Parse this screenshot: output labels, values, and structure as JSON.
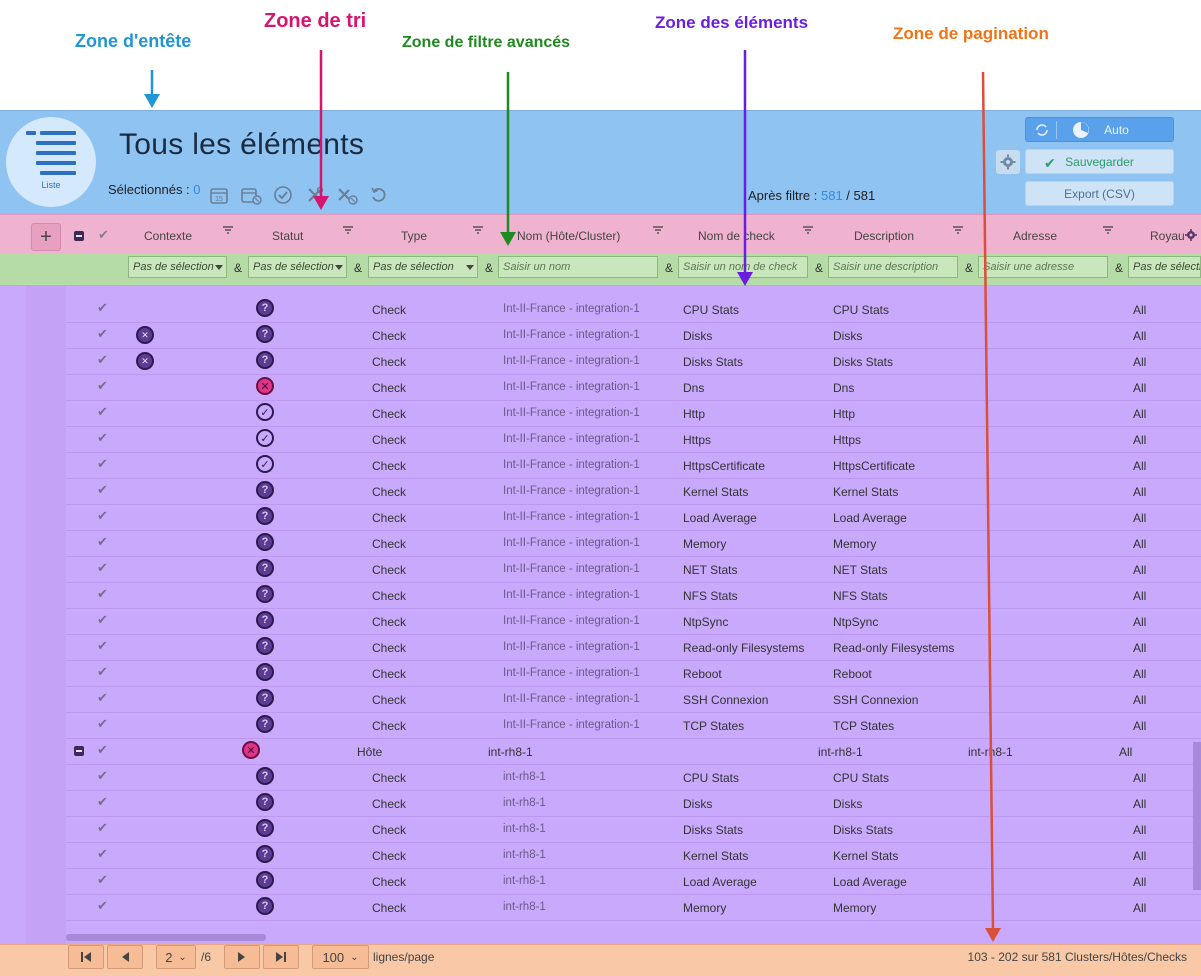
{
  "annotations": {
    "header": {
      "label": "Zone d'entête",
      "color": "#2196d6"
    },
    "sort": {
      "label": "Zone de tri",
      "color": "#d6166e"
    },
    "filter": {
      "label": "Zone de filtre avancés",
      "color": "#1f8a1f"
    },
    "items": {
      "label": "Zone des éléments",
      "color": "#6a1ee0"
    },
    "pagination": {
      "label": "Zone de pagination",
      "color": "#f07417"
    }
  },
  "header": {
    "logo_label": "Liste",
    "title": "Tous les éléments",
    "selected_label": "Sélectionnés :",
    "selected_count": "0",
    "after_filter_label": "Après filtre :",
    "after_filter_count": "581",
    "after_filter_total": "581",
    "auto_label": "Auto",
    "save_label": "Sauvegarder",
    "export_label": "Export (CSV)"
  },
  "columns": {
    "context": "Contexte",
    "status": "Statut",
    "type": "Type",
    "name": "Nom (Hôte/Cluster)",
    "check": "Nom de check",
    "description": "Description",
    "address": "Adresse",
    "realm": "Royau"
  },
  "filters": {
    "context": "Pas de sélection",
    "status": "Pas de sélection",
    "type": "Pas de sélection",
    "name_placeholder": "Saisir un nom",
    "check_placeholder": "Saisir un nom de check",
    "description_placeholder": "Saisir une description",
    "address_placeholder": "Saisir une adresse",
    "realm": "Pas de sélection",
    "amp": "&"
  },
  "rows": [
    {
      "ctx": false,
      "status": "unknown",
      "type": "Check",
      "name": "Int-II-France - integration-1",
      "check": "CPU Stats",
      "desc": "CPU Stats",
      "addr": "",
      "realm": "All"
    },
    {
      "ctx": true,
      "status": "unknown",
      "type": "Check",
      "name": "Int-II-France - integration-1",
      "check": "Disks",
      "desc": "Disks",
      "addr": "",
      "realm": "All"
    },
    {
      "ctx": true,
      "status": "unknown",
      "type": "Check",
      "name": "Int-II-France - integration-1",
      "check": "Disks Stats",
      "desc": "Disks Stats",
      "addr": "",
      "realm": "All"
    },
    {
      "ctx": false,
      "status": "error",
      "type": "Check",
      "name": "Int-II-France - integration-1",
      "check": "Dns",
      "desc": "Dns",
      "addr": "",
      "realm": "All"
    },
    {
      "ctx": false,
      "status": "ok",
      "type": "Check",
      "name": "Int-II-France - integration-1",
      "check": "Http",
      "desc": "Http",
      "addr": "",
      "realm": "All"
    },
    {
      "ctx": false,
      "status": "ok",
      "type": "Check",
      "name": "Int-II-France - integration-1",
      "check": "Https",
      "desc": "Https",
      "addr": "",
      "realm": "All"
    },
    {
      "ctx": false,
      "status": "ok",
      "type": "Check",
      "name": "Int-II-France - integration-1",
      "check": "HttpsCertificate",
      "desc": "HttpsCertificate",
      "addr": "",
      "realm": "All"
    },
    {
      "ctx": false,
      "status": "unknown",
      "type": "Check",
      "name": "Int-II-France - integration-1",
      "check": "Kernel Stats",
      "desc": "Kernel Stats",
      "addr": "",
      "realm": "All"
    },
    {
      "ctx": false,
      "status": "unknown",
      "type": "Check",
      "name": "Int-II-France - integration-1",
      "check": "Load Average",
      "desc": "Load Average",
      "addr": "",
      "realm": "All"
    },
    {
      "ctx": false,
      "status": "unknown",
      "type": "Check",
      "name": "Int-II-France - integration-1",
      "check": "Memory",
      "desc": "Memory",
      "addr": "",
      "realm": "All"
    },
    {
      "ctx": false,
      "status": "unknown",
      "type": "Check",
      "name": "Int-II-France - integration-1",
      "check": "NET Stats",
      "desc": "NET Stats",
      "addr": "",
      "realm": "All"
    },
    {
      "ctx": false,
      "status": "unknown",
      "type": "Check",
      "name": "Int-II-France - integration-1",
      "check": "NFS Stats",
      "desc": "NFS Stats",
      "addr": "",
      "realm": "All"
    },
    {
      "ctx": false,
      "status": "unknown",
      "type": "Check",
      "name": "Int-II-France - integration-1",
      "check": "NtpSync",
      "desc": "NtpSync",
      "addr": "",
      "realm": "All"
    },
    {
      "ctx": false,
      "status": "unknown",
      "type": "Check",
      "name": "Int-II-France - integration-1",
      "check": "Read-only Filesystems",
      "desc": "Read-only Filesystems",
      "addr": "",
      "realm": "All"
    },
    {
      "ctx": false,
      "status": "unknown",
      "type": "Check",
      "name": "Int-II-France - integration-1",
      "check": "Reboot",
      "desc": "Reboot",
      "addr": "",
      "realm": "All"
    },
    {
      "ctx": false,
      "status": "unknown",
      "type": "Check",
      "name": "Int-II-France - integration-1",
      "check": "SSH Connexion",
      "desc": "SSH Connexion",
      "addr": "",
      "realm": "All"
    },
    {
      "ctx": false,
      "status": "unknown",
      "type": "Check",
      "name": "Int-II-France - integration-1",
      "check": "TCP States",
      "desc": "TCP States",
      "addr": "",
      "realm": "All"
    },
    {
      "host": true,
      "ctx": false,
      "status": "error",
      "type": "Hôte",
      "name": "int-rh8-1",
      "check": "",
      "desc": "int-rh8-1",
      "addr": "int-rh8-1",
      "realm": "All"
    },
    {
      "ctx": false,
      "status": "unknown",
      "type": "Check",
      "name": "int-rh8-1",
      "check": "CPU Stats",
      "desc": "CPU Stats",
      "addr": "",
      "realm": "All"
    },
    {
      "ctx": false,
      "status": "unknown",
      "type": "Check",
      "name": "int-rh8-1",
      "check": "Disks",
      "desc": "Disks",
      "addr": "",
      "realm": "All"
    },
    {
      "ctx": false,
      "status": "unknown",
      "type": "Check",
      "name": "int-rh8-1",
      "check": "Disks Stats",
      "desc": "Disks Stats",
      "addr": "",
      "realm": "All"
    },
    {
      "ctx": false,
      "status": "unknown",
      "type": "Check",
      "name": "int-rh8-1",
      "check": "Kernel Stats",
      "desc": "Kernel Stats",
      "addr": "",
      "realm": "All"
    },
    {
      "ctx": false,
      "status": "unknown",
      "type": "Check",
      "name": "int-rh8-1",
      "check": "Load Average",
      "desc": "Load Average",
      "addr": "",
      "realm": "All"
    },
    {
      "ctx": false,
      "status": "unknown",
      "type": "Check",
      "name": "int-rh8-1",
      "check": "Memory",
      "desc": "Memory",
      "addr": "",
      "realm": "All"
    }
  ],
  "pagination": {
    "page": "2",
    "total_pages": "/6",
    "page_size": "100",
    "rows_label": "lignes/page",
    "info": "103 - 202 sur 581 Clusters/Hôtes/Checks"
  }
}
